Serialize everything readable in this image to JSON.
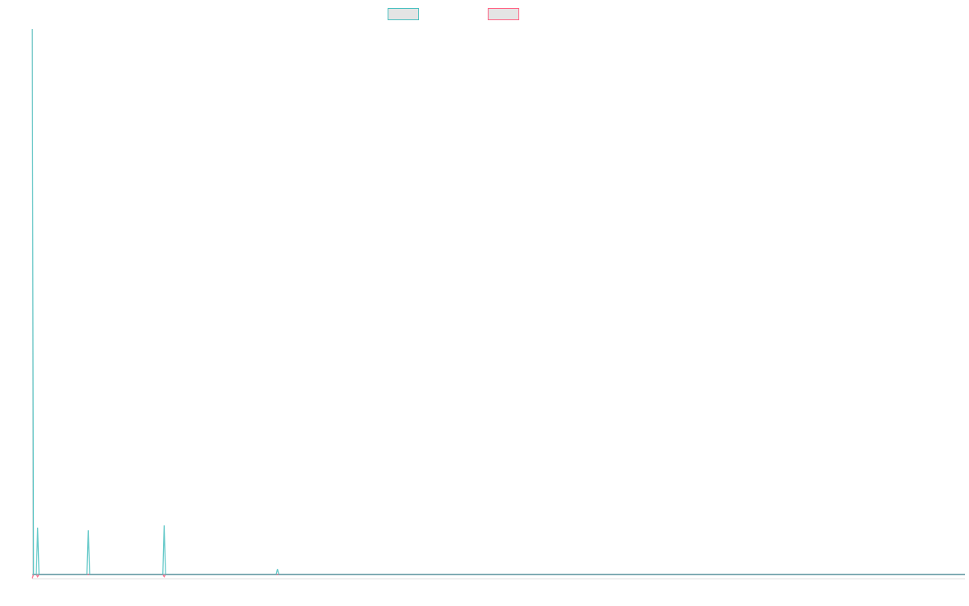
{
  "chart_data": {
    "type": "line",
    "title": "",
    "xlabel": "",
    "ylabel": "",
    "xlim": [
      0,
      700
    ],
    "ylim": [
      -0.75,
      100
    ],
    "grid": false,
    "legend": "top-center",
    "series": [
      {
        "color": "#4bc0c0",
        "points": [
          [
            0,
            100
          ],
          [
            1,
            0
          ],
          [
            3,
            0
          ],
          [
            4,
            8.6
          ],
          [
            5,
            0
          ],
          [
            41,
            0
          ],
          [
            42,
            8.1
          ],
          [
            43,
            0
          ],
          [
            98,
            0
          ],
          [
            99,
            9.0
          ],
          [
            100,
            0
          ],
          [
            183,
            0
          ],
          [
            184,
            1.0
          ],
          [
            185,
            0
          ],
          [
            700,
            0
          ]
        ]
      },
      {
        "color": "#ff6384",
        "points": [
          [
            0,
            -0.7
          ],
          [
            1,
            0
          ],
          [
            3,
            0
          ],
          [
            4,
            -0.4
          ],
          [
            5,
            0
          ],
          [
            98,
            0
          ],
          [
            99,
            -0.4
          ],
          [
            100,
            0
          ],
          [
            700,
            0
          ]
        ]
      }
    ]
  }
}
